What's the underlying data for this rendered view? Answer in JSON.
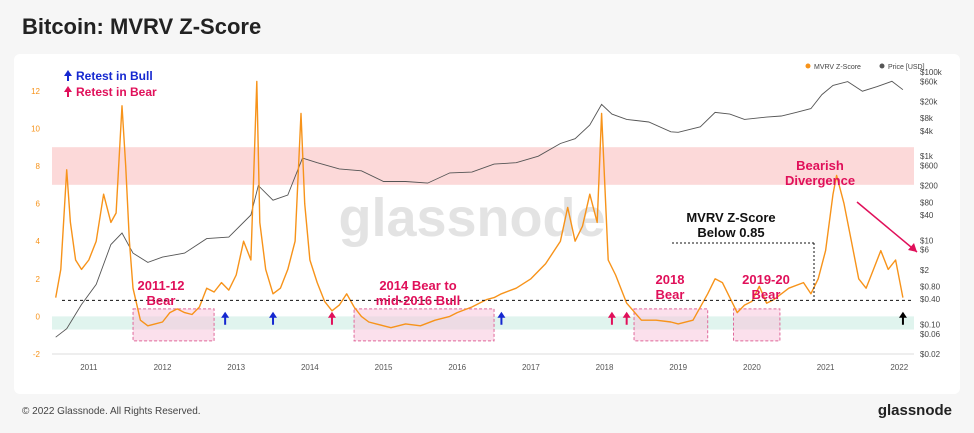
{
  "page": {
    "title": "Bitcoin: MVRV Z-Score",
    "copyright": "© 2022 Glassnode. All Rights Reserved.",
    "brand": "glassnode",
    "watermark": "glassnode"
  },
  "colors": {
    "zscore": "#f7931a",
    "price": "#555555",
    "red_band": "#fbd0d0",
    "green_band": "#e0f4ee",
    "bear_box": "#f7c6dc",
    "bear_border": "#e0689a",
    "blue_arrow": "#1528d0",
    "pink_arrow": "#e0105a",
    "annotation_pink": "#e0105a"
  },
  "legend_top": {
    "zscore": "MVRV Z-Score",
    "price": "Price [USD]"
  },
  "legend_annot": {
    "retest_bull": "Retest in Bull",
    "retest_bear": "Retest in Bear"
  },
  "annotations": {
    "bear_2011": [
      "2011-12",
      "Bear"
    ],
    "bear_2014": [
      "2014 Bear to",
      "mid-2016 Bull"
    ],
    "bear_2018": [
      "2018",
      "Bear"
    ],
    "bear_2019": [
      "2019-20",
      "Bear"
    ],
    "divergence": [
      "Bearish",
      "Divergence"
    ],
    "below": [
      "MVRV Z-Score",
      "Below 0.85"
    ]
  },
  "chart_data": {
    "type": "line",
    "xlim": [
      2010.5,
      2022.2
    ],
    "x_ticks": [
      "2011",
      "2012",
      "2013",
      "2014",
      "2015",
      "2016",
      "2017",
      "2018",
      "2019",
      "2020",
      "2021",
      "2022"
    ],
    "y_left": {
      "ylim": [
        -2,
        13
      ],
      "ticks": [
        -2,
        0,
        2,
        4,
        6,
        8,
        10,
        12
      ],
      "tick_labels": [
        "-2",
        "0",
        "2",
        "4",
        "6",
        "8",
        "10",
        "12"
      ]
    },
    "y_right": {
      "scale": "log",
      "ticks": [
        0.02,
        0.06,
        0.1,
        0.4,
        0.8,
        2,
        6,
        10,
        40,
        80,
        200,
        600,
        1000,
        4000,
        8000,
        20000,
        60000,
        100000
      ],
      "tick_labels": [
        "$0.02",
        "$0.06",
        "$0.10",
        "$0.40",
        "$0.80",
        "$2",
        "$6",
        "$10",
        "$40",
        "$80",
        "$200",
        "$600",
        "$1k",
        "$4k",
        "$8k",
        "$20k",
        "$60k",
        "$100k"
      ]
    },
    "threshold": 0.85,
    "red_band": [
      7,
      9
    ],
    "green_band": [
      -0.7,
      0
    ],
    "bear_regions": [
      [
        2011.6,
        2012.7
      ],
      [
        2014.6,
        2016.5
      ],
      [
        2018.4,
        2019.4
      ],
      [
        2019.75,
        2020.38
      ]
    ],
    "arrows": [
      {
        "x": 2012.85,
        "type": "bull"
      },
      {
        "x": 2013.5,
        "type": "bull"
      },
      {
        "x": 2014.3,
        "type": "bear"
      },
      {
        "x": 2016.6,
        "type": "bull"
      },
      {
        "x": 2018.1,
        "type": "bear"
      },
      {
        "x": 2018.3,
        "type": "bear"
      },
      {
        "x": 2022.05,
        "type": "current"
      }
    ],
    "series": [
      {
        "name": "MVRV Z-Score",
        "axis": "left",
        "x": [
          2010.55,
          2010.62,
          2010.7,
          2010.75,
          2010.82,
          2010.9,
          2011.0,
          2011.1,
          2011.2,
          2011.3,
          2011.37,
          2011.45,
          2011.5,
          2011.55,
          2011.6,
          2011.7,
          2011.8,
          2011.9,
          2012.0,
          2012.1,
          2012.2,
          2012.3,
          2012.4,
          2012.5,
          2012.6,
          2012.7,
          2012.8,
          2012.9,
          2013.0,
          2013.1,
          2013.2,
          2013.28,
          2013.32,
          2013.4,
          2013.5,
          2013.6,
          2013.7,
          2013.8,
          2013.88,
          2013.93,
          2014.0,
          2014.1,
          2014.2,
          2014.3,
          2014.4,
          2014.5,
          2014.6,
          2014.7,
          2014.8,
          2014.9,
          2015.0,
          2015.1,
          2015.2,
          2015.3,
          2015.5,
          2015.7,
          2015.9,
          2016.0,
          2016.2,
          2016.4,
          2016.5,
          2016.6,
          2016.8,
          2017.0,
          2017.2,
          2017.4,
          2017.5,
          2017.6,
          2017.7,
          2017.8,
          2017.9,
          2017.96,
          2018.05,
          2018.15,
          2018.3,
          2018.5,
          2018.7,
          2018.9,
          2019.0,
          2019.2,
          2019.4,
          2019.5,
          2019.6,
          2019.7,
          2019.8,
          2019.9,
          2020.0,
          2020.1,
          2020.2,
          2020.3,
          2020.5,
          2020.7,
          2020.8,
          2020.9,
          2021.0,
          2021.1,
          2021.15,
          2021.25,
          2021.35,
          2021.45,
          2021.55,
          2021.65,
          2021.75,
          2021.85,
          2021.95,
          2022.05
        ],
        "values": [
          1.0,
          2.5,
          7.8,
          5.0,
          3.0,
          2.5,
          3.0,
          4.0,
          6.5,
          5.0,
          5.5,
          11.2,
          8.0,
          4.0,
          1.5,
          -0.2,
          -0.5,
          -0.4,
          -0.3,
          0.2,
          0.4,
          0.2,
          0.1,
          0.5,
          1.5,
          1.3,
          1.8,
          1.4,
          2.2,
          4.0,
          3.0,
          12.5,
          5.0,
          2.5,
          1.2,
          1.5,
          2.5,
          4.0,
          10.8,
          6.0,
          3.0,
          1.8,
          0.8,
          0.3,
          0.6,
          1.2,
          0.5,
          0.0,
          -0.3,
          -0.4,
          -0.5,
          -0.6,
          -0.5,
          -0.4,
          -0.5,
          -0.2,
          0.0,
          0.2,
          0.5,
          0.9,
          1.0,
          1.2,
          1.5,
          2.0,
          2.8,
          4.0,
          5.8,
          4.0,
          4.8,
          6.5,
          5.0,
          10.8,
          3.0,
          2.2,
          0.7,
          -0.2,
          -0.2,
          -0.3,
          -0.4,
          -0.2,
          1.2,
          2.0,
          1.8,
          1.0,
          0.2,
          0.6,
          0.8,
          1.6,
          0.7,
          0.9,
          1.5,
          1.8,
          1.2,
          2.0,
          3.5,
          6.5,
          7.5,
          6.0,
          4.0,
          2.0,
          1.5,
          2.5,
          3.5,
          2.5,
          3.0,
          1.0
        ]
      },
      {
        "name": "Price [USD]",
        "axis": "right",
        "x": [
          2010.55,
          2010.7,
          2010.9,
          2011.1,
          2011.3,
          2011.45,
          2011.6,
          2011.8,
          2012.0,
          2012.3,
          2012.6,
          2012.9,
          2013.2,
          2013.3,
          2013.5,
          2013.7,
          2013.9,
          2014.1,
          2014.4,
          2014.7,
          2015.0,
          2015.3,
          2015.6,
          2015.9,
          2016.2,
          2016.5,
          2016.8,
          2017.1,
          2017.4,
          2017.6,
          2017.8,
          2017.96,
          2018.1,
          2018.3,
          2018.6,
          2018.9,
          2019.0,
          2019.3,
          2019.5,
          2019.7,
          2019.9,
          2020.2,
          2020.4,
          2020.6,
          2020.8,
          2020.95,
          2021.1,
          2021.3,
          2021.5,
          2021.7,
          2021.9,
          2022.05
        ],
        "values": [
          0.05,
          0.08,
          0.3,
          0.9,
          8,
          15,
          5,
          3,
          4,
          5,
          11,
          12,
          40,
          200,
          90,
          120,
          900,
          700,
          500,
          450,
          250,
          250,
          230,
          400,
          420,
          650,
          700,
          1000,
          2000,
          2600,
          5500,
          17000,
          10000,
          7500,
          6500,
          3800,
          3700,
          5000,
          11000,
          10000,
          7500,
          8500,
          9000,
          11000,
          13500,
          29000,
          48000,
          59000,
          35000,
          45000,
          60000,
          38000
        ]
      }
    ]
  }
}
